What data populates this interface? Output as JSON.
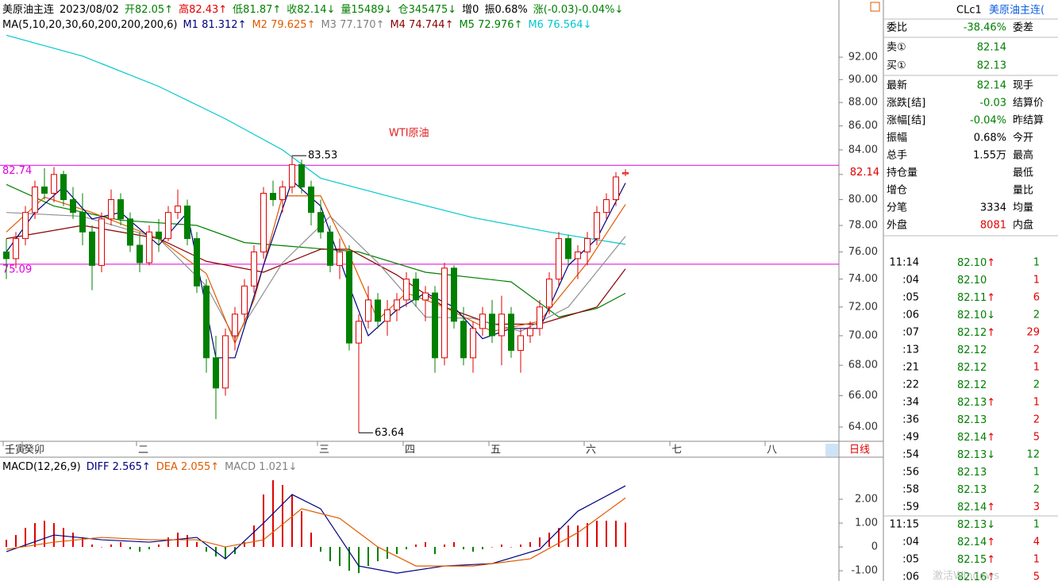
{
  "header": {
    "segments": [
      {
        "text": "美原油主连",
        "color": "#000000"
      },
      {
        "text": "2023/08/02",
        "color": "#000000"
      },
      {
        "text": "开82.05↑",
        "color": "#008000"
      },
      {
        "text": "高82.43↑",
        "color": "#e00000"
      },
      {
        "text": "低81.87↑",
        "color": "#008000"
      },
      {
        "text": "收82.14↓",
        "color": "#008000"
      },
      {
        "text": "量15489↓",
        "color": "#008000"
      },
      {
        "text": "仓345475↓",
        "color": "#008000"
      },
      {
        "text": "增0",
        "color": "#000000"
      },
      {
        "text": "振0.68%",
        "color": "#000000"
      },
      {
        "text": "涨(-0.03)-0.04%↓",
        "color": "#008000"
      }
    ]
  },
  "ma_legend": [
    {
      "text": "MA(5,10,20,30,60,200,200,200,6)",
      "color": "#000000"
    },
    {
      "text": "M1 81.312↑",
      "color": "#00007f"
    },
    {
      "text": "M2 79.625↑",
      "color": "#e05a00"
    },
    {
      "text": "M3 77.170↑",
      "color": "#808080"
    },
    {
      "text": "M4 74.744↑",
      "color": "#8b0000"
    },
    {
      "text": "M5 72.976↑",
      "color": "#008000"
    },
    {
      "text": "M6 76.564↓",
      "color": "#00c8d0"
    }
  ],
  "macd_legend": [
    {
      "text": "MACD(12,26,9)",
      "color": "#000000"
    },
    {
      "text": "DIFF 2.565↑",
      "color": "#00007f"
    },
    {
      "text": "DEA 2.055↑",
      "color": "#e05a00"
    },
    {
      "text": "MACD 1.021↓",
      "color": "#808080"
    }
  ],
  "chart": {
    "title": "WTI原油",
    "log": true,
    "ylim": [
      63.16,
      97.16
    ],
    "yticks": [
      {
        "value": 92,
        "label": "92.00"
      },
      {
        "value": 90,
        "label": "90.00"
      },
      {
        "value": 88,
        "label": "88.00"
      },
      {
        "value": 86,
        "label": "86.00"
      },
      {
        "value": 84,
        "label": "84.00"
      },
      {
        "value": 82,
        "label": "82.00"
      },
      {
        "value": 80,
        "label": "80.00"
      },
      {
        "value": 78,
        "label": "78.00"
      },
      {
        "value": 76,
        "label": "76.00"
      },
      {
        "value": 74,
        "label": "74.00"
      },
      {
        "value": 72,
        "label": "72.00"
      },
      {
        "value": 70,
        "label": "70.00"
      },
      {
        "value": 68,
        "label": "68.00"
      },
      {
        "value": 66,
        "label": "66.00"
      },
      {
        "value": 64,
        "label": "64.00"
      }
    ],
    "up_color": "#e00000",
    "down_color": "#008000",
    "candles": [
      [
        76,
        77,
        74,
        75.5
      ],
      [
        75.5,
        77.5,
        74.8,
        77
      ],
      [
        77,
        79.5,
        76.5,
        79
      ],
      [
        79,
        81.5,
        78.5,
        81
      ],
      [
        81,
        82.5,
        80,
        80.5
      ],
      [
        80.5,
        82.6,
        79.8,
        82
      ],
      [
        82,
        82.3,
        79.5,
        80
      ],
      [
        80,
        81,
        78.5,
        79
      ],
      [
        79,
        80.5,
        76.5,
        77.5
      ],
      [
        77.5,
        78,
        73.2,
        75
      ],
      [
        75,
        79,
        74.5,
        78.5
      ],
      [
        78.5,
        80.8,
        78,
        80
      ],
      [
        80,
        80.5,
        78,
        78.5
      ],
      [
        78.5,
        79,
        76,
        76.5
      ],
      [
        76.5,
        77.5,
        74.5,
        75.2
      ],
      [
        75.2,
        78,
        75,
        77.5
      ],
      [
        77.5,
        78.5,
        76,
        77
      ],
      [
        77,
        79.5,
        76.8,
        79
      ],
      [
        79,
        80.8,
        78.5,
        79.5
      ],
      [
        79.5,
        80,
        76.5,
        77
      ],
      [
        77,
        77.5,
        73,
        73.5
      ],
      [
        73.5,
        74,
        67.5,
        68.5
      ],
      [
        68.5,
        70,
        64.5,
        66.5
      ],
      [
        66.5,
        70.5,
        66,
        70
      ],
      [
        70,
        72,
        69,
        71.5
      ],
      [
        71.5,
        74,
        71,
        73.5
      ],
      [
        73.5,
        76.5,
        73,
        76
      ],
      [
        76,
        81,
        75.5,
        80.5
      ],
      [
        80.5,
        81.5,
        79.5,
        80
      ],
      [
        80,
        81.5,
        79,
        81
      ],
      [
        81,
        83.53,
        80.5,
        82.8
      ],
      [
        82.8,
        83.2,
        80.5,
        81
      ],
      [
        81,
        81.5,
        78,
        79
      ],
      [
        79,
        80,
        77,
        77.5
      ],
      [
        77.5,
        78,
        74.5,
        75
      ],
      [
        75,
        77,
        74,
        76
      ],
      [
        76,
        76.5,
        69,
        69.5
      ],
      [
        69.5,
        71.5,
        63.64,
        71
      ],
      [
        71,
        73.5,
        70.5,
        72.5
      ],
      [
        72.5,
        73,
        70.5,
        71
      ],
      [
        71,
        72.5,
        70,
        71.8
      ],
      [
        71.8,
        73,
        71,
        72.5
      ],
      [
        72.5,
        74.5,
        72,
        74
      ],
      [
        74,
        74.5,
        72,
        72.5
      ],
      [
        72.5,
        73.5,
        71,
        73
      ],
      [
        73,
        73.5,
        67.5,
        68.5
      ],
      [
        68.5,
        75.2,
        68,
        74.8
      ],
      [
        74.8,
        75,
        70.5,
        71
      ],
      [
        71,
        72,
        68,
        68.5
      ],
      [
        68.5,
        71,
        67.5,
        70.5
      ],
      [
        70.5,
        72,
        70,
        71.5
      ],
      [
        71.5,
        72.5,
        69.5,
        70
      ],
      [
        70,
        72.8,
        68,
        71.5
      ],
      [
        71.5,
        72,
        68.5,
        69
      ],
      [
        69,
        70.5,
        67.5,
        70
      ],
      [
        70,
        71,
        69.5,
        70.5
      ],
      [
        70.5,
        72.5,
        70,
        72
      ],
      [
        72,
        74.5,
        71.5,
        74
      ],
      [
        74,
        77.5,
        73.5,
        77
      ],
      [
        77,
        77.3,
        75,
        75.5
      ],
      [
        75.5,
        76.5,
        74,
        76
      ],
      [
        76,
        77.5,
        75,
        77
      ],
      [
        77,
        79.5,
        76.5,
        79
      ],
      [
        79,
        80.5,
        78.5,
        80
      ],
      [
        80,
        82.2,
        79.5,
        81.8
      ],
      [
        82.05,
        82.43,
        81.87,
        82.14
      ]
    ],
    "ma": [
      {
        "name": "M6",
        "color": "#00c8d0",
        "x": [
          0,
          8,
          16,
          23,
          29,
          33,
          41,
          49,
          57,
          65
        ],
        "values": [
          94.0,
          92.1,
          89.4,
          86.6,
          84.0,
          81.7,
          80.1,
          78.6,
          77.5,
          76.564
        ]
      },
      {
        "name": "M5",
        "color": "#008000",
        "x": [
          0,
          5,
          12,
          20,
          25,
          37,
          44,
          53,
          58,
          62,
          65
        ],
        "values": [
          81.2,
          79.5,
          78.4,
          78.0,
          76.7,
          76.0,
          74.5,
          73.8,
          71.3,
          71.9,
          72.976
        ]
      },
      {
        "name": "M4",
        "color": "#8b0000",
        "x": [
          0,
          8,
          16,
          21,
          27,
          33,
          36,
          41,
          46,
          51,
          56,
          62,
          65
        ],
        "values": [
          77.0,
          78.0,
          77.0,
          75.3,
          74.5,
          76.2,
          76.2,
          74.3,
          72.0,
          70.8,
          70.8,
          72.0,
          74.744
        ]
      },
      {
        "name": "M3",
        "color": "#909090",
        "x": [
          0,
          8,
          16,
          21,
          24,
          29,
          34,
          39,
          44,
          49,
          54,
          59,
          65
        ],
        "values": [
          79.0,
          78.7,
          77.0,
          73.5,
          69.8,
          75.2,
          78.7,
          75.2,
          71.3,
          71.2,
          70.3,
          72.0,
          77.17
        ]
      },
      {
        "name": "M2",
        "color": "#e05a00",
        "x": [
          0,
          4,
          9,
          16,
          21,
          24,
          26,
          29,
          33,
          36,
          39,
          42,
          46,
          51,
          56,
          61,
          65
        ],
        "values": [
          77.5,
          80.2,
          79.0,
          77.0,
          74.4,
          69.5,
          72.5,
          80.3,
          80.3,
          75.8,
          71.1,
          73.0,
          72.0,
          70.3,
          71.0,
          75.2,
          79.625
        ]
      },
      {
        "name": "M1",
        "color": "#00007f",
        "x": [
          0,
          3,
          6,
          9,
          12,
          16,
          19,
          22,
          24,
          27,
          30,
          33,
          36,
          38,
          41,
          44,
          47,
          50,
          53,
          56,
          59,
          62,
          65
        ],
        "values": [
          76.0,
          79.0,
          81.0,
          78.5,
          79.0,
          76.5,
          79.0,
          68.5,
          68.5,
          75.0,
          81.5,
          79.5,
          73.5,
          70.0,
          71.8,
          73.0,
          72.0,
          69.8,
          70.5,
          70.5,
          75.0,
          77.0,
          81.312
        ]
      }
    ],
    "lines": [
      {
        "value": 82.74,
        "label": "82.74",
        "color": "#e000e0"
      },
      {
        "value": 75.09,
        "label": "75.09",
        "color": "#e000e0"
      }
    ],
    "annotations": [
      {
        "text": "83.53",
        "index": 30,
        "value": 83.53
      },
      {
        "text": "63.64",
        "index": 37,
        "value": 63.64
      }
    ],
    "last": {
      "value": 82.14,
      "label": "82.14"
    },
    "periods": [
      {
        "label": "壬寅",
        "index": 0
      },
      {
        "label": "癸卯",
        "index": 2
      },
      {
        "label": "二",
        "index": 14
      },
      {
        "label": "三",
        "index": 33
      },
      {
        "label": "四",
        "index": 42
      },
      {
        "label": "五",
        "index": 51
      },
      {
        "label": "六",
        "index": 61
      },
      {
        "label": "七",
        "index": 70
      },
      {
        "label": "八",
        "index": 80
      }
    ],
    "timeframe": "日线"
  },
  "macd": {
    "ylim": [
      -1.43,
      3.7
    ],
    "yticks": [
      {
        "value": 2,
        "label": "2.00"
      },
      {
        "value": 1,
        "label": "1.00"
      },
      0,
      {
        "value": -1,
        "label": "-1.00"
      }
    ],
    "histogram": [
      0.3,
      0.5,
      0.8,
      1.0,
      1.1,
      1.0,
      0.8,
      0.6,
      0.4,
      0.1,
      0.0,
      0.1,
      0.2,
      -0.1,
      -0.2,
      -0.1,
      0.1,
      0.4,
      0.6,
      0.5,
      0.2,
      -0.2,
      -0.4,
      -0.5,
      -0.3,
      0.2,
      0.9,
      2.2,
      2.8,
      2.6,
      2.2,
      1.5,
      0.6,
      -0.2,
      -0.6,
      -0.8,
      -1.0,
      -1.1,
      -0.8,
      -0.6,
      -0.5,
      -0.3,
      -0.1,
      0.1,
      0.2,
      -0.3,
      0.1,
      0.2,
      -0.1,
      -0.2,
      -0.1,
      0.0,
      0.1,
      0.0,
      0.1,
      0.2,
      0.4,
      0.6,
      0.8,
      0.9,
      0.9,
      1.0,
      1.1,
      1.1,
      1.1,
      1.021
    ],
    "lines": [
      {
        "name": "DIFF",
        "color": "#00007f",
        "x": [
          0,
          5,
          10,
          15,
          20,
          23,
          27,
          30,
          33,
          37,
          41,
          46,
          51,
          56,
          60,
          65
        ],
        "values": [
          -0.2,
          0.5,
          0.3,
          0.2,
          0.4,
          -0.5,
          1.0,
          2.2,
          1.6,
          -0.8,
          -1.1,
          -0.8,
          -0.7,
          -0.1,
          1.5,
          2.565
        ]
      },
      {
        "name": "DEA",
        "color": "#e05a00",
        "x": [
          0,
          5,
          10,
          15,
          20,
          23,
          27,
          31,
          35,
          39,
          43,
          49,
          55,
          60,
          65
        ],
        "values": [
          -0.1,
          0.2,
          0.4,
          0.3,
          0.3,
          0.0,
          0.3,
          1.6,
          1.2,
          0.0,
          -0.8,
          -0.8,
          -0.5,
          0.6,
          2.055
        ]
      }
    ]
  },
  "quote": {
    "symbol": "CLc1",
    "name": "美原油主连(",
    "rows": [
      {
        "label": "委比",
        "value": "-38.46%",
        "label2": "委差",
        "color": "#008000"
      },
      {
        "label": "卖①",
        "value": "82.14",
        "color": "#008000"
      },
      {
        "label": "买①",
        "value": "82.13",
        "color": "#008000"
      },
      {
        "label": "最新",
        "value": "82.14",
        "label2": "现手",
        "color": "#008000"
      },
      {
        "label": "涨跌[结]",
        "value": "-0.03",
        "label2": "结算价",
        "color": "#008000"
      },
      {
        "label": "涨幅[结]",
        "value": "-0.04%",
        "label2": "昨结算",
        "color": "#008000"
      },
      {
        "label": "振幅",
        "value": "0.68%",
        "label2": "今开",
        "color": "#000000"
      },
      {
        "label": "总手",
        "value": "1.55万",
        "label2": "最高",
        "color": "#000000"
      },
      {
        "label": "持仓量",
        "label2": "最低"
      },
      {
        "label": "增仓",
        "label2": "量比"
      },
      {
        "label": "分笔",
        "value": 3334,
        "label2": "均量",
        "color": "#000000"
      },
      {
        "label": "外盘",
        "value": 8081,
        "label2": "内盘",
        "color": "#e00000"
      }
    ],
    "ticks": [
      {
        "time": "11:14",
        "price": "82.10",
        "arrow": "↑",
        "volume": 1,
        "color": "#008000"
      },
      {
        "time": ":04",
        "price": "82.10",
        "volume": 1,
        "color": "#e00000"
      },
      {
        "time": ":05",
        "price": "82.11",
        "arrow": "↑",
        "volume": 6,
        "color": "#e00000"
      },
      {
        "time": ":06",
        "price": "82.10",
        "arrow": "↓",
        "volume": 2,
        "color": "#008000"
      },
      {
        "time": ":07",
        "price": "82.12",
        "arrow": "↑",
        "volume": 29,
        "color": "#e00000"
      },
      {
        "time": ":13",
        "price": "82.12",
        "volume": 2,
        "color": "#e00000"
      },
      {
        "time": ":21",
        "price": "82.12",
        "volume": 1,
        "color": "#e00000"
      },
      {
        "time": ":22",
        "price": "82.12",
        "volume": 2,
        "color": "#008000"
      },
      {
        "time": ":34",
        "price": "82.13",
        "arrow": "↑",
        "volume": 1,
        "color": "#e00000"
      },
      {
        "time": ":36",
        "price": "82.13",
        "volume": 2,
        "color": "#e00000"
      },
      {
        "time": ":49",
        "price": "82.14",
        "arrow": "↑",
        "volume": 5,
        "color": "#e00000"
      },
      {
        "time": ":54",
        "price": "82.13",
        "arrow": "↓",
        "volume": 12,
        "color": "#008000"
      },
      {
        "time": ":56",
        "price": "82.13",
        "volume": 1,
        "color": "#008000"
      },
      {
        "time": ":58",
        "price": "82.13",
        "volume": 2,
        "color": "#008000"
      },
      {
        "time": ":59",
        "price": "82.14",
        "arrow": "↑",
        "volume": 3,
        "color": "#e00000"
      },
      {
        "time": "11:15",
        "price": "82.13",
        "arrow": "↓",
        "volume": 1,
        "color": "#008000"
      },
      {
        "time": ":04",
        "price": "82.14",
        "arrow": "↑",
        "volume": 4,
        "color": "#e00000"
      },
      {
        "time": ":05",
        "price": "82.15",
        "arrow": "↑",
        "volume": 1,
        "color": "#e00000"
      },
      {
        "time": ":06",
        "price": "82.16",
        "arrow": "↑",
        "volume": 5,
        "color": "#e00000"
      }
    ]
  },
  "watermark": "激活Windows"
}
